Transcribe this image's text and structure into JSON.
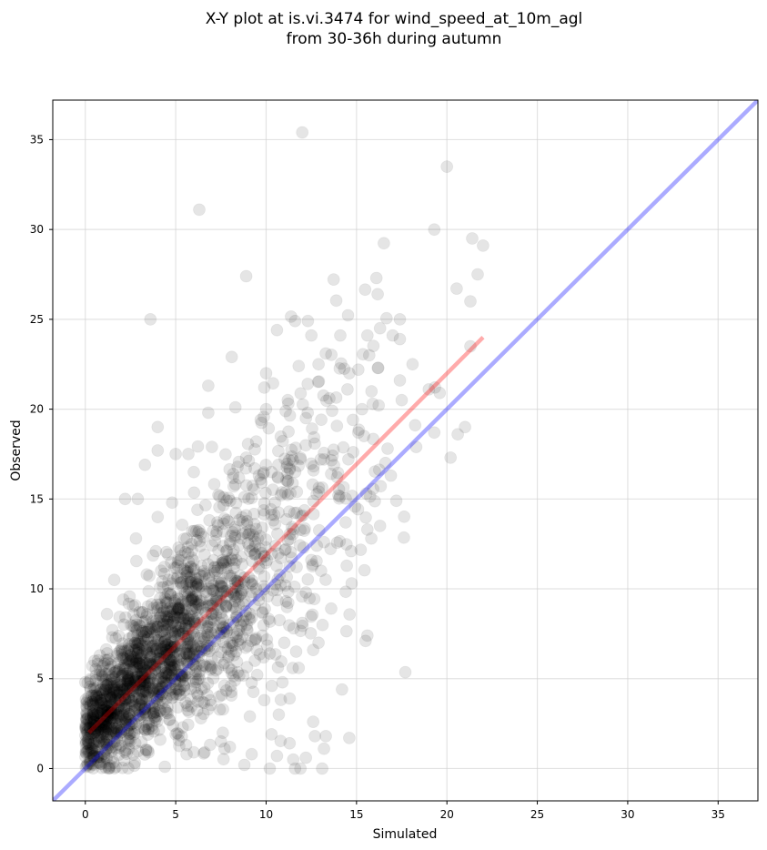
{
  "chart_data": {
    "type": "scatter",
    "title": [
      "X-Y plot at is.vi.3474 for wind_speed_at_10m_agl",
      "from 30-36h during autumn"
    ],
    "xlabel": "Simulated",
    "ylabel": "Observed",
    "xlim": [
      -1.8,
      37.2
    ],
    "ylim": [
      -1.8,
      37.2
    ],
    "xticks": [
      0,
      5,
      10,
      15,
      20,
      25,
      30,
      35
    ],
    "yticks": [
      0,
      5,
      10,
      15,
      20,
      25,
      30,
      35
    ],
    "xtick_labels": [
      "0",
      "5",
      "10",
      "15",
      "20",
      "25",
      "30",
      "35"
    ],
    "ytick_labels": [
      "0",
      "5",
      "10",
      "15",
      "20",
      "25",
      "30",
      "35"
    ],
    "grid": true,
    "colors": {
      "points": "#000000",
      "fit_line": "#ff0000",
      "identity_line": "#0000ff"
    },
    "series": [
      {
        "kind": "points",
        "marker_alpha": 0.1,
        "approx_count": 2200,
        "points": [
          [
            12.0,
            35.4
          ],
          [
            20.0,
            33.5
          ],
          [
            6.3,
            31.1
          ],
          [
            19.3,
            30.0
          ],
          [
            21.4,
            29.5
          ],
          [
            22.0,
            29.1
          ],
          [
            8.9,
            27.4
          ],
          [
            16.1,
            27.3
          ],
          [
            21.7,
            27.5
          ],
          [
            21.3,
            26.0
          ],
          [
            3.6,
            25.0
          ],
          [
            17.4,
            25.0
          ],
          [
            12.5,
            24.1
          ],
          [
            14.1,
            24.1
          ],
          [
            15.6,
            24.1
          ],
          [
            16.3,
            24.5
          ],
          [
            17.0,
            24.1
          ],
          [
            11.6,
            24.9
          ],
          [
            10.6,
            24.4
          ],
          [
            21.3,
            23.5
          ],
          [
            17.4,
            23.9
          ],
          [
            13.3,
            23.1
          ],
          [
            15.7,
            23.0
          ],
          [
            12.9,
            22.5
          ],
          [
            18.1,
            22.5
          ],
          [
            10.0,
            22.0
          ],
          [
            14.6,
            22.0
          ],
          [
            8.1,
            22.9
          ],
          [
            11.8,
            22.4
          ],
          [
            15.1,
            22.2
          ],
          [
            19.0,
            21.1
          ],
          [
            17.4,
            21.6
          ],
          [
            9.9,
            21.2
          ],
          [
            6.8,
            21.3
          ],
          [
            12.3,
            21.4
          ],
          [
            14.5,
            21.1
          ],
          [
            15.9,
            20.3
          ],
          [
            16.2,
            22.3
          ],
          [
            11.2,
            20.5
          ],
          [
            13.5,
            20.6
          ],
          [
            8.3,
            20.1
          ],
          [
            10.0,
            20.0
          ],
          [
            19.6,
            20.9
          ],
          [
            21.0,
            19.0
          ],
          [
            20.6,
            18.6
          ],
          [
            19.3,
            18.7
          ],
          [
            20.2,
            17.3
          ],
          [
            18.3,
            17.9
          ],
          [
            4.0,
            19.0
          ],
          [
            6.8,
            19.8
          ],
          [
            9.7,
            19.4
          ],
          [
            12.2,
            19.5
          ],
          [
            14.8,
            19.4
          ],
          [
            15.1,
            18.7
          ],
          [
            17.5,
            20.5
          ],
          [
            4.0,
            17.7
          ],
          [
            5.0,
            17.5
          ],
          [
            5.7,
            17.5
          ],
          [
            7.0,
            17.9
          ],
          [
            8.9,
            17.3
          ],
          [
            11.9,
            17.3
          ],
          [
            13.2,
            17.2
          ],
          [
            16.6,
            17.0
          ],
          [
            3.3,
            16.9
          ],
          [
            6.0,
            16.5
          ],
          [
            9.6,
            16.3
          ],
          [
            10.3,
            16.5
          ],
          [
            13.6,
            16.4
          ],
          [
            16.9,
            16.3
          ],
          [
            2.2,
            15.0
          ],
          [
            2.9,
            15.0
          ],
          [
            4.8,
            14.8
          ],
          [
            6.2,
            14.4
          ],
          [
            8.8,
            15.1
          ],
          [
            11.7,
            15.4
          ],
          [
            14.0,
            15.2
          ],
          [
            17.2,
            14.9
          ],
          [
            4.0,
            14.0
          ],
          [
            7.3,
            13.7
          ],
          [
            10.5,
            13.6
          ],
          [
            14.4,
            13.7
          ],
          [
            16.3,
            13.5
          ],
          [
            15.6,
            13.3
          ],
          [
            2.8,
            12.8
          ],
          [
            5.6,
            12.8
          ],
          [
            8.0,
            12.5
          ],
          [
            11.2,
            12.7
          ],
          [
            13.2,
            12.6
          ],
          [
            14.7,
            12.1
          ],
          [
            3.9,
            12.1
          ],
          [
            6.6,
            11.9
          ],
          [
            9.9,
            11.8
          ],
          [
            12.5,
            11.6
          ],
          [
            1.6,
            10.5
          ],
          [
            3.4,
            10.8
          ],
          [
            5.3,
            10.6
          ],
          [
            7.5,
            10.3
          ],
          [
            10.8,
            10.2
          ],
          [
            12.2,
            9.8
          ],
          [
            13.6,
            8.9
          ],
          [
            2.1,
            9.4
          ],
          [
            4.4,
            9.5
          ],
          [
            6.3,
            9.1
          ],
          [
            8.5,
            9.6
          ],
          [
            11.1,
            9.3
          ],
          [
            1.2,
            8.6
          ],
          [
            3.0,
            8.7
          ],
          [
            5.1,
            8.4
          ],
          [
            7.0,
            8.6
          ],
          [
            9.2,
            8.4
          ],
          [
            12.0,
            8.1
          ],
          [
            1.5,
            7.7
          ],
          [
            2.7,
            7.9
          ],
          [
            4.8,
            7.6
          ],
          [
            6.8,
            7.3
          ],
          [
            9.8,
            7.4
          ],
          [
            11.0,
            7.0
          ],
          [
            12.9,
            7.0
          ],
          [
            15.6,
            7.4
          ],
          [
            15.5,
            7.1
          ],
          [
            0.8,
            6.3
          ],
          [
            2.0,
            6.6
          ],
          [
            3.6,
            6.2
          ],
          [
            5.6,
            6.4
          ],
          [
            7.9,
            6.2
          ],
          [
            10.2,
            6.4
          ],
          [
            12.6,
            6.6
          ],
          [
            0.9,
            5.4
          ],
          [
            1.9,
            5.5
          ],
          [
            3.2,
            5.7
          ],
          [
            4.6,
            5.2
          ],
          [
            6.3,
            5.0
          ],
          [
            8.1,
            5.3
          ],
          [
            10.9,
            4.8
          ],
          [
            11.8,
            5.6
          ],
          [
            0.5,
            4.5
          ],
          [
            1.4,
            4.4
          ],
          [
            2.5,
            4.6
          ],
          [
            3.8,
            4.3
          ],
          [
            5.2,
            4.1
          ],
          [
            7.4,
            4.0
          ],
          [
            9.9,
            3.8
          ],
          [
            11.3,
            3.9
          ],
          [
            14.2,
            4.4
          ],
          [
            0.4,
            3.2
          ],
          [
            1.1,
            3.4
          ],
          [
            2.1,
            3.0
          ],
          [
            3.3,
            3.4
          ],
          [
            4.5,
            3.1
          ],
          [
            6.4,
            2.8
          ],
          [
            9.1,
            2.9
          ],
          [
            10.7,
            3.0
          ],
          [
            0.3,
            2.2
          ],
          [
            0.9,
            2.4
          ],
          [
            1.7,
            2.0
          ],
          [
            2.6,
            2.5
          ],
          [
            3.7,
            2.2
          ],
          [
            5.0,
            1.9
          ],
          [
            7.5,
            1.5
          ],
          [
            10.3,
            1.9
          ],
          [
            11.3,
            1.4
          ],
          [
            12.6,
            2.6
          ],
          [
            12.7,
            1.8
          ],
          [
            13.3,
            1.8
          ],
          [
            14.6,
            1.7
          ],
          [
            0.4,
            1.0
          ],
          [
            1.2,
            1.3
          ],
          [
            2.4,
            1.1
          ],
          [
            3.5,
            0.9
          ],
          [
            5.6,
            0.8
          ],
          [
            6.6,
            0.9
          ],
          [
            7.7,
            1.1
          ],
          [
            8.8,
            0.2
          ],
          [
            9.2,
            0.8
          ],
          [
            10.6,
            0.7
          ],
          [
            11.5,
            0.5
          ],
          [
            12.2,
            0.6
          ],
          [
            13.1,
            0.0
          ],
          [
            13.2,
            1.1
          ],
          [
            1.3,
            0.0
          ],
          [
            4.4,
            0.1
          ],
          [
            10.2,
            0.0
          ],
          [
            11.6,
            0.0
          ],
          [
            11.9,
            0.0
          ],
          [
            8.0,
            1.2
          ],
          [
            6.0,
            0.9
          ]
        ]
      },
      {
        "kind": "fit_line",
        "x": [
          0.2,
          22.0
        ],
        "y": [
          2.0,
          24.0
        ]
      },
      {
        "kind": "identity_line",
        "x": [
          -1.8,
          37.2
        ],
        "y": [
          -1.8,
          37.2
        ]
      }
    ]
  }
}
